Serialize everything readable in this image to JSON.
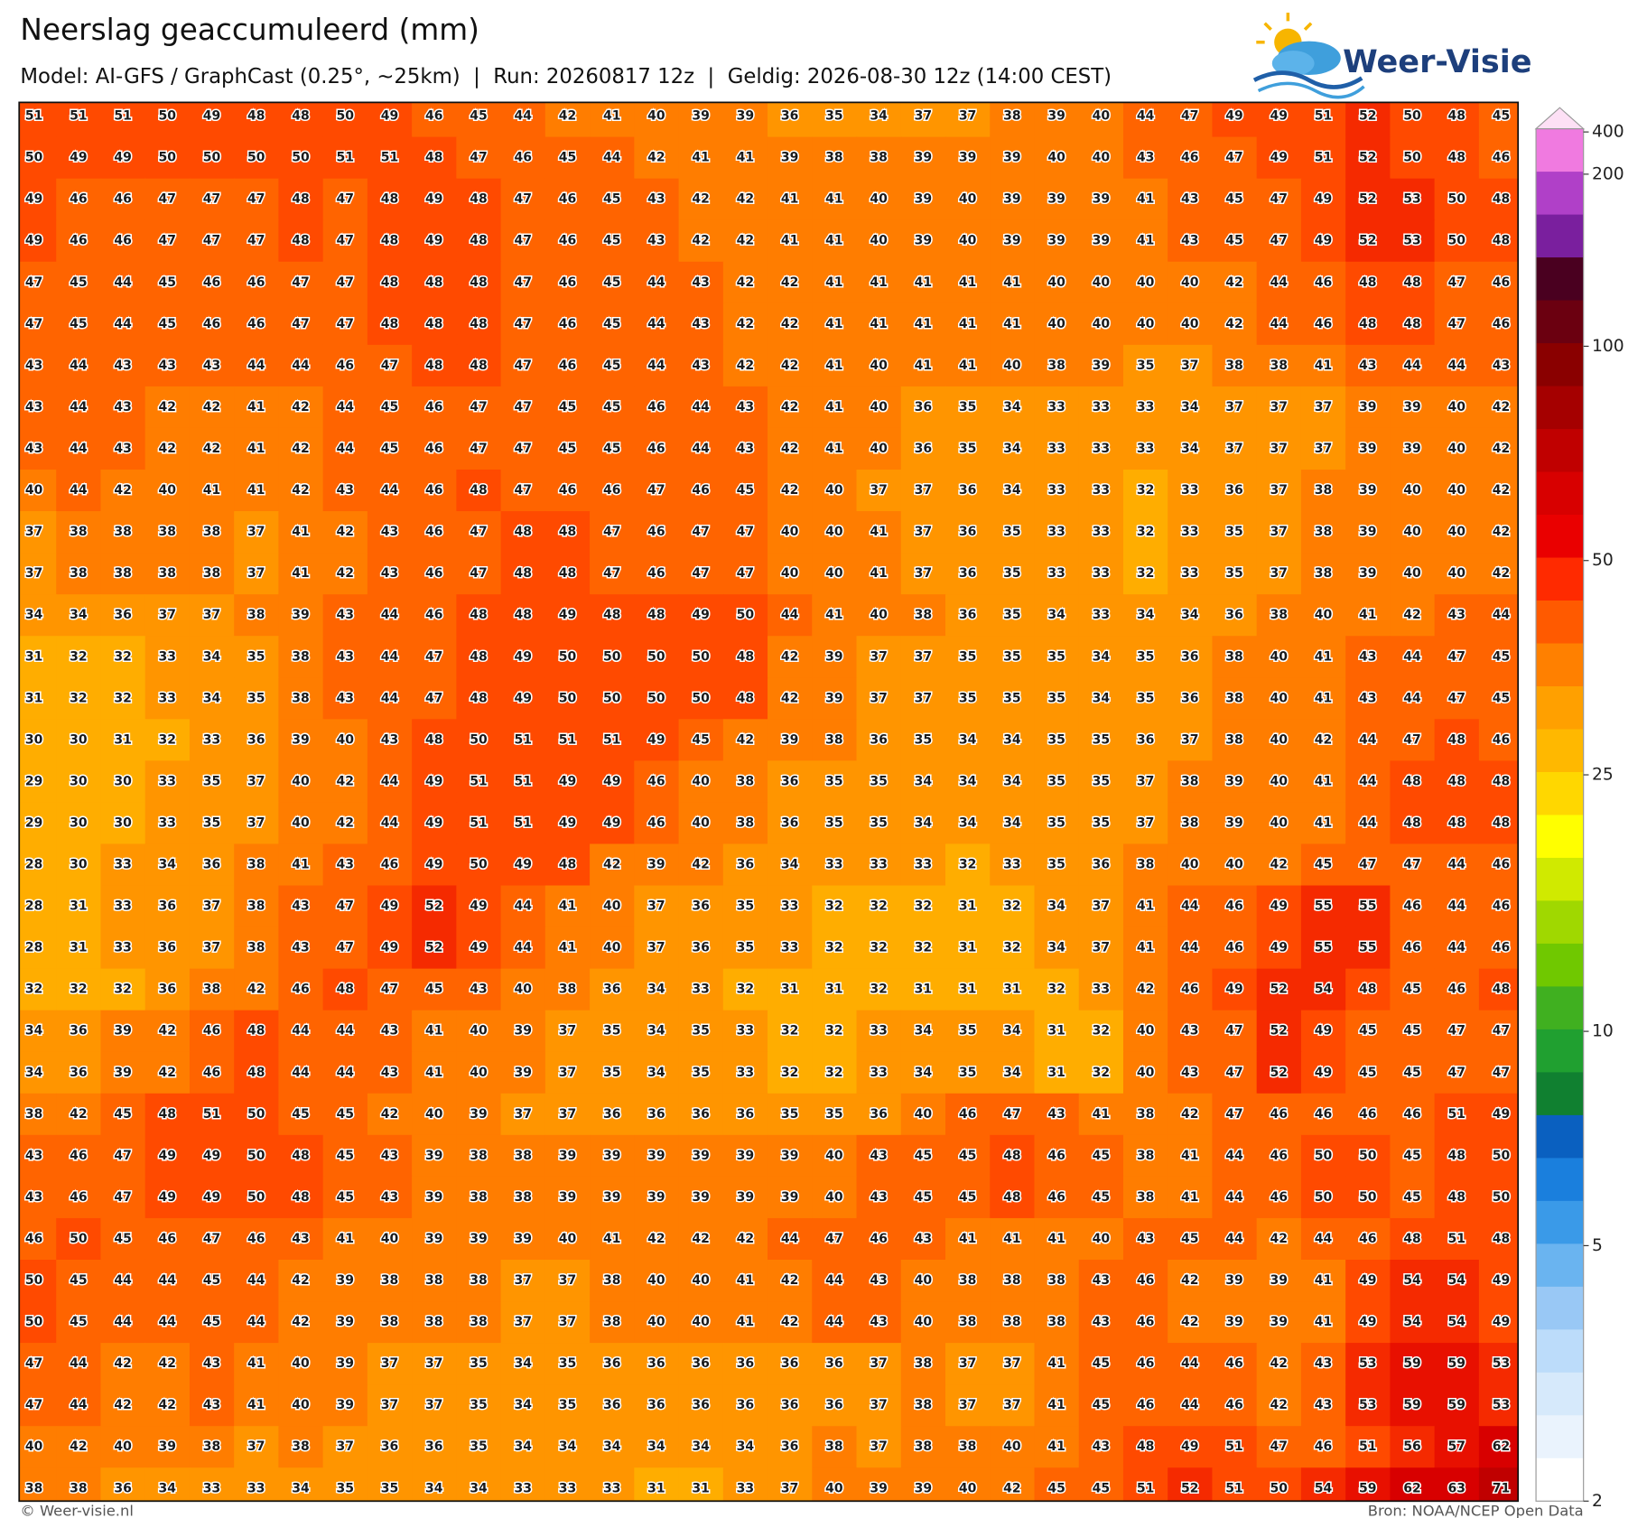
{
  "header": {
    "title": "Neerslag geaccumuleerd (mm)",
    "subtitle": "Model: AI-GFS / GraphCast (0.25°, ~25km)  |  Run: 20260817 12z  |  Geldig: 2026-08-30 12z (14:00 CEST)"
  },
  "logo": {
    "text": "Weer-Visie"
  },
  "grid": {
    "rows": [
      [
        51,
        51,
        51,
        50,
        49,
        48,
        48,
        50,
        49,
        46,
        45,
        44,
        42,
        41,
        40,
        39,
        39,
        36,
        35,
        34,
        37,
        37,
        38,
        39,
        40,
        44,
        47,
        49,
        49,
        51,
        52,
        50,
        48,
        45
      ],
      [
        50,
        49,
        49,
        50,
        50,
        50,
        50,
        51,
        51,
        48,
        47,
        46,
        45,
        44,
        42,
        41,
        41,
        39,
        38,
        38,
        39,
        39,
        39,
        40,
        40,
        43,
        46,
        47,
        49,
        51,
        52,
        50,
        48,
        46
      ],
      [
        49,
        46,
        46,
        47,
        47,
        47,
        48,
        47,
        48,
        49,
        48,
        47,
        46,
        45,
        43,
        42,
        42,
        41,
        41,
        40,
        39,
        40,
        39,
        39,
        39,
        41,
        43,
        45,
        47,
        49,
        52,
        53,
        50,
        48
      ],
      [
        49,
        46,
        46,
        47,
        47,
        47,
        48,
        47,
        48,
        49,
        48,
        47,
        46,
        45,
        43,
        42,
        42,
        41,
        41,
        40,
        39,
        40,
        39,
        39,
        39,
        41,
        43,
        45,
        47,
        49,
        52,
        53,
        50,
        48
      ],
      [
        47,
        45,
        44,
        45,
        46,
        46,
        47,
        47,
        48,
        48,
        48,
        47,
        46,
        45,
        44,
        43,
        42,
        42,
        41,
        41,
        41,
        41,
        41,
        40,
        40,
        40,
        40,
        42,
        44,
        46,
        48,
        48,
        47,
        46
      ],
      [
        47,
        45,
        44,
        45,
        46,
        46,
        47,
        47,
        48,
        48,
        48,
        47,
        46,
        45,
        44,
        43,
        42,
        42,
        41,
        41,
        41,
        41,
        41,
        40,
        40,
        40,
        40,
        42,
        44,
        46,
        48,
        48,
        47,
        46
      ],
      [
        43,
        44,
        43,
        43,
        43,
        44,
        44,
        46,
        47,
        48,
        48,
        47,
        46,
        45,
        44,
        43,
        42,
        42,
        41,
        40,
        41,
        41,
        40,
        38,
        39,
        35,
        37,
        38,
        38,
        41,
        43,
        44,
        44,
        43
      ],
      [
        43,
        44,
        43,
        42,
        42,
        41,
        42,
        44,
        45,
        46,
        47,
        47,
        45,
        45,
        46,
        44,
        43,
        42,
        41,
        40,
        36,
        35,
        34,
        33,
        33,
        33,
        34,
        37,
        37,
        37,
        39,
        39,
        40,
        42
      ],
      [
        43,
        44,
        43,
        42,
        42,
        41,
        42,
        44,
        45,
        46,
        47,
        47,
        45,
        45,
        46,
        44,
        43,
        42,
        41,
        40,
        36,
        35,
        34,
        33,
        33,
        33,
        34,
        37,
        37,
        37,
        39,
        39,
        40,
        42
      ],
      [
        40,
        44,
        42,
        40,
        41,
        41,
        42,
        43,
        44,
        46,
        48,
        47,
        46,
        46,
        47,
        46,
        45,
        42,
        40,
        37,
        37,
        36,
        34,
        33,
        33,
        32,
        33,
        36,
        37,
        38,
        39,
        40,
        40,
        42
      ],
      [
        37,
        38,
        38,
        38,
        38,
        37,
        41,
        42,
        43,
        46,
        47,
        48,
        48,
        47,
        46,
        47,
        47,
        40,
        40,
        41,
        37,
        36,
        35,
        33,
        33,
        32,
        33,
        35,
        37,
        38,
        39,
        40,
        40,
        42
      ],
      [
        37,
        38,
        38,
        38,
        38,
        37,
        41,
        42,
        43,
        46,
        47,
        48,
        48,
        47,
        46,
        47,
        47,
        40,
        40,
        41,
        37,
        36,
        35,
        33,
        33,
        32,
        33,
        35,
        37,
        38,
        39,
        40,
        40,
        42
      ],
      [
        34,
        34,
        36,
        37,
        37,
        38,
        39,
        43,
        44,
        46,
        48,
        48,
        49,
        48,
        48,
        49,
        50,
        44,
        41,
        40,
        38,
        36,
        35,
        34,
        33,
        34,
        34,
        36,
        38,
        40,
        41,
        42,
        43,
        44
      ],
      [
        31,
        32,
        32,
        33,
        34,
        35,
        38,
        43,
        44,
        47,
        48,
        49,
        50,
        50,
        50,
        50,
        48,
        42,
        39,
        37,
        37,
        35,
        35,
        35,
        34,
        35,
        36,
        38,
        40,
        41,
        43,
        44,
        47,
        45
      ],
      [
        31,
        32,
        32,
        33,
        34,
        35,
        38,
        43,
        44,
        47,
        48,
        49,
        50,
        50,
        50,
        50,
        48,
        42,
        39,
        37,
        37,
        35,
        35,
        35,
        34,
        35,
        36,
        38,
        40,
        41,
        43,
        44,
        47,
        45
      ],
      [
        30,
        30,
        31,
        32,
        33,
        36,
        39,
        40,
        43,
        48,
        50,
        51,
        51,
        51,
        49,
        45,
        42,
        39,
        38,
        36,
        35,
        34,
        34,
        35,
        35,
        36,
        37,
        38,
        40,
        42,
        44,
        47,
        48,
        46
      ],
      [
        29,
        30,
        30,
        33,
        35,
        37,
        40,
        42,
        44,
        49,
        51,
        51,
        49,
        49,
        46,
        40,
        38,
        36,
        35,
        35,
        34,
        34,
        34,
        35,
        35,
        37,
        38,
        39,
        40,
        41,
        44,
        48,
        48,
        48
      ],
      [
        29,
        30,
        30,
        33,
        35,
        37,
        40,
        42,
        44,
        49,
        51,
        51,
        49,
        49,
        46,
        40,
        38,
        36,
        35,
        35,
        34,
        34,
        34,
        35,
        35,
        37,
        38,
        39,
        40,
        41,
        44,
        48,
        48,
        48
      ],
      [
        28,
        30,
        33,
        34,
        36,
        38,
        41,
        43,
        46,
        49,
        50,
        49,
        48,
        42,
        39,
        42,
        36,
        34,
        33,
        33,
        33,
        32,
        33,
        35,
        36,
        38,
        40,
        40,
        42,
        45,
        47,
        47,
        44,
        46
      ],
      [
        28,
        31,
        33,
        36,
        37,
        38,
        43,
        47,
        49,
        52,
        49,
        44,
        41,
        40,
        37,
        36,
        35,
        33,
        32,
        32,
        32,
        31,
        32,
        34,
        37,
        41,
        44,
        46,
        49,
        55,
        55,
        46,
        44,
        46
      ],
      [
        28,
        31,
        33,
        36,
        37,
        38,
        43,
        47,
        49,
        52,
        49,
        44,
        41,
        40,
        37,
        36,
        35,
        33,
        32,
        32,
        32,
        31,
        32,
        34,
        37,
        41,
        44,
        46,
        49,
        55,
        55,
        46,
        44,
        46
      ],
      [
        32,
        32,
        32,
        36,
        38,
        42,
        46,
        48,
        47,
        45,
        43,
        40,
        38,
        36,
        34,
        33,
        32,
        31,
        31,
        32,
        31,
        31,
        31,
        32,
        33,
        42,
        46,
        49,
        52,
        54,
        48,
        45,
        46,
        48
      ],
      [
        34,
        36,
        39,
        42,
        46,
        48,
        44,
        44,
        43,
        41,
        40,
        39,
        37,
        35,
        34,
        35,
        33,
        32,
        32,
        33,
        34,
        35,
        34,
        31,
        32,
        40,
        43,
        47,
        52,
        49,
        45,
        45,
        47,
        47
      ],
      [
        34,
        36,
        39,
        42,
        46,
        48,
        44,
        44,
        43,
        41,
        40,
        39,
        37,
        35,
        34,
        35,
        33,
        32,
        32,
        33,
        34,
        35,
        34,
        31,
        32,
        40,
        43,
        47,
        52,
        49,
        45,
        45,
        47,
        47
      ],
      [
        38,
        42,
        45,
        48,
        51,
        50,
        45,
        45,
        42,
        40,
        39,
        37,
        37,
        36,
        36,
        36,
        36,
        35,
        35,
        36,
        40,
        46,
        47,
        43,
        41,
        38,
        42,
        47,
        46,
        46,
        46,
        46,
        51,
        49
      ],
      [
        43,
        46,
        47,
        49,
        49,
        50,
        48,
        45,
        43,
        39,
        38,
        38,
        39,
        39,
        39,
        39,
        39,
        39,
        40,
        43,
        45,
        45,
        48,
        46,
        45,
        38,
        41,
        44,
        46,
        50,
        50,
        45,
        48,
        50
      ],
      [
        43,
        46,
        47,
        49,
        49,
        50,
        48,
        45,
        43,
        39,
        38,
        38,
        39,
        39,
        39,
        39,
        39,
        39,
        40,
        43,
        45,
        45,
        48,
        46,
        45,
        38,
        41,
        44,
        46,
        50,
        50,
        45,
        48,
        50
      ],
      [
        46,
        50,
        45,
        46,
        47,
        46,
        43,
        41,
        40,
        39,
        39,
        39,
        40,
        41,
        42,
        42,
        42,
        44,
        47,
        46,
        43,
        41,
        41,
        41,
        40,
        43,
        45,
        44,
        42,
        44,
        46,
        48,
        51,
        48
      ],
      [
        50,
        45,
        44,
        44,
        45,
        44,
        42,
        39,
        38,
        38,
        38,
        37,
        37,
        38,
        40,
        40,
        41,
        42,
        44,
        43,
        40,
        38,
        38,
        38,
        43,
        46,
        42,
        39,
        39,
        41,
        49,
        54,
        54,
        49
      ],
      [
        50,
        45,
        44,
        44,
        45,
        44,
        42,
        39,
        38,
        38,
        38,
        37,
        37,
        38,
        40,
        40,
        41,
        42,
        44,
        43,
        40,
        38,
        38,
        38,
        43,
        46,
        42,
        39,
        39,
        41,
        49,
        54,
        54,
        49
      ],
      [
        47,
        44,
        42,
        42,
        43,
        41,
        40,
        39,
        37,
        37,
        35,
        34,
        35,
        36,
        36,
        36,
        36,
        36,
        36,
        37,
        38,
        37,
        37,
        41,
        45,
        46,
        44,
        46,
        42,
        43,
        53,
        59,
        59,
        53
      ],
      [
        47,
        44,
        42,
        42,
        43,
        41,
        40,
        39,
        37,
        37,
        35,
        34,
        35,
        36,
        36,
        36,
        36,
        36,
        36,
        37,
        38,
        37,
        37,
        41,
        45,
        46,
        44,
        46,
        42,
        43,
        53,
        59,
        59,
        53
      ],
      [
        40,
        42,
        40,
        39,
        38,
        37,
        38,
        37,
        36,
        36,
        35,
        34,
        34,
        34,
        34,
        34,
        34,
        36,
        38,
        37,
        38,
        38,
        40,
        41,
        43,
        48,
        49,
        51,
        47,
        46,
        51,
        56,
        57,
        62
      ],
      [
        38,
        38,
        36,
        34,
        33,
        33,
        34,
        35,
        35,
        34,
        34,
        33,
        33,
        33,
        31,
        31,
        33,
        37,
        40,
        39,
        39,
        40,
        42,
        45,
        45,
        51,
        52,
        51,
        50,
        54,
        59,
        62,
        63,
        71
      ]
    ]
  },
  "colorbar": {
    "ticks": [
      400,
      200,
      100,
      50,
      25,
      10,
      5,
      2
    ]
  },
  "footer": {
    "left": "© Weer-visie.nl",
    "right": "Bron: NOAA/NCEP Open Data"
  }
}
